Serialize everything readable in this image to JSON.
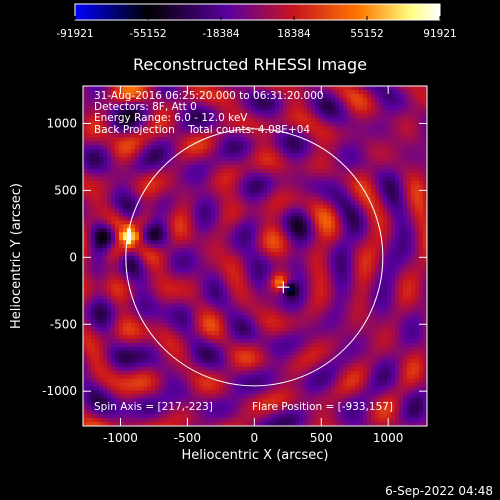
{
  "chart_data": {
    "type": "heatmap",
    "title": "Reconstructed RHESSI Image",
    "xlabel": "Heliocentric X (arcsec)",
    "ylabel": "Heliocentric Y (arcsec)",
    "xlim": [
      -1280,
      1290
    ],
    "ylim": [
      -1260,
      1280
    ],
    "x_ticks": [
      -1000,
      -500,
      0,
      500,
      1000
    ],
    "y_ticks": [
      -1000,
      -500,
      0,
      500,
      1000
    ],
    "x_tick_labels": [
      "-1000",
      "-500",
      "0",
      "500",
      "1000"
    ],
    "y_tick_labels": [
      "-1000",
      "-500",
      "0",
      "500",
      "1000"
    ],
    "colorbar": {
      "range": [
        -91921,
        91921
      ],
      "tick_values": [
        -91921,
        -55152,
        -18384,
        18384,
        55152,
        91921
      ],
      "tick_labels": [
        "-91921",
        "-55152",
        "-18384",
        "18384",
        "55152",
        "91921"
      ],
      "colors": [
        "#0000ff",
        "#000000",
        "#5a00a0",
        "#c8141e",
        "#ff7800",
        "#ffff80",
        "#ffffff"
      ]
    },
    "annotations": [
      "31-Aug-2016 06:25:20.000 to 06:31:20.000",
      "Detectors: 8F, Att 0",
      "Energy Range: 6.0 - 12.0 keV",
      "Back Projection    Total counts: 4.08E+04"
    ],
    "footer": {
      "spin_axis": "Spin Axis = [217,-223]",
      "flare_position": "Flare Position = [-933,157]"
    },
    "solar_limb": {
      "center": [
        0,
        0
      ],
      "radius": 960
    },
    "spin_axis_marker": [
      217,
      -223
    ],
    "peak_sources": [
      {
        "x": -933,
        "y": 157,
        "level": 92000
      },
      {
        "x": 190,
        "y": -190,
        "level": 80000
      }
    ],
    "min_source": {
      "x": 262,
      "y": -240,
      "level": -91921
    }
  },
  "timestamp": "6-Sep-2022 04:48"
}
